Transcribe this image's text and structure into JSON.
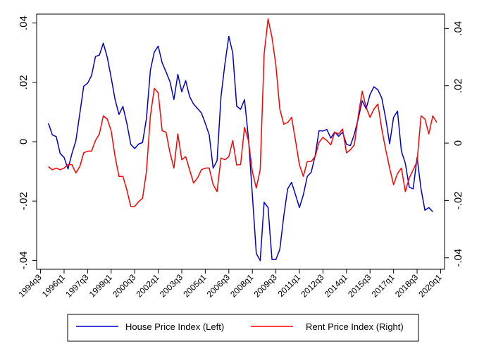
{
  "chart_data": {
    "type": "line",
    "title": "",
    "xlabel": "",
    "ylabel_left": "",
    "ylabel_right": "",
    "x_tick_labels": [
      "1994q3",
      "1996q1",
      "1997q3",
      "1999q1",
      "2000q3",
      "2002q1",
      "2003q3",
      "2005q1",
      "2006q3",
      "2008q1",
      "2009q3",
      "2011q1",
      "2012q3",
      "2014q1",
      "2015q3",
      "2017q1",
      "2018q3",
      "2020q1"
    ],
    "x_tick_index": [
      0,
      6,
      12,
      18,
      24,
      30,
      36,
      42,
      48,
      54,
      60,
      66,
      72,
      78,
      84,
      90,
      96,
      102
    ],
    "y_left": {
      "lim": [
        -0.043,
        0.043
      ],
      "ticks": [
        -0.04,
        -0.02,
        0,
        0.02,
        0.04
      ],
      "tick_labels": [
        "-.04",
        "-.02",
        "0",
        ".02",
        ".04"
      ]
    },
    "y_right": {
      "lim": [
        -0.044,
        0.045
      ],
      "ticks": [
        -0.04,
        -0.02,
        0,
        0.02,
        0.04
      ],
      "tick_labels": [
        "-.04",
        "-.02",
        "0",
        ".02",
        ".04"
      ]
    },
    "grid": false,
    "legend_position": "bottom",
    "series": [
      {
        "name": "House Price Index (Left)",
        "axis": "left",
        "color": "#0000cc",
        "start_index": 2,
        "values": [
          0.0062,
          0.0023,
          0.0017,
          -0.004,
          -0.0053,
          -0.0092,
          -0.004,
          0.0003,
          0.0094,
          0.0187,
          0.0197,
          0.0223,
          0.0287,
          0.0292,
          0.0332,
          0.0285,
          0.0216,
          0.0142,
          0.0092,
          0.0119,
          0.0062,
          -0.0009,
          -0.0023,
          -0.0008,
          -0.0003,
          0.0078,
          0.0241,
          0.0302,
          0.0322,
          0.0266,
          0.0235,
          0.0202,
          0.0142,
          0.0227,
          0.0168,
          0.0206,
          0.0152,
          0.0127,
          0.0112,
          0.0097,
          0.0062,
          0.0023,
          -0.0089,
          -0.0064,
          0.0151,
          0.0262,
          0.0355,
          0.0299,
          0.012,
          0.0109,
          0.0142,
          0.0012,
          -0.0179,
          -0.0376,
          -0.0401,
          -0.0204,
          -0.0222,
          -0.0397,
          -0.0397,
          -0.0363,
          -0.0252,
          -0.0159,
          -0.0137,
          -0.0179,
          -0.0222,
          -0.0179,
          -0.0117,
          -0.0103,
          -0.0048,
          0.0037,
          0.0036,
          0.0041,
          0.0012,
          0.0033,
          0.0018,
          0.0032,
          -0.0009,
          -0.0013,
          0.0025,
          0.0078,
          0.0138,
          0.0111,
          0.0159,
          0.0185,
          0.0175,
          0.0147,
          0.0078,
          -0.0007,
          0.0082,
          0.0103,
          -0.0032,
          -0.0073,
          -0.0153,
          -0.0159,
          -0.0053,
          -0.0159,
          -0.0231,
          -0.0222,
          -0.0236
        ]
      },
      {
        "name": "Rent Price Index (Right)",
        "axis": "right",
        "color": "#ff0000",
        "start_index": 2,
        "values": [
          -0.0082,
          -0.0093,
          -0.0087,
          -0.0093,
          -0.0087,
          -0.0075,
          -0.0075,
          -0.0104,
          -0.0082,
          -0.0034,
          -0.0028,
          -0.0028,
          0.0009,
          0.0032,
          0.0095,
          0.0084,
          0.0043,
          -0.0047,
          -0.0116,
          -0.0116,
          -0.0163,
          -0.0221,
          -0.0221,
          -0.0204,
          -0.0192,
          -0.0099,
          0.0095,
          0.0191,
          0.0175,
          0.0043,
          0.0038,
          -0.0034,
          -0.0087,
          0.0032,
          -0.0058,
          -0.0047,
          -0.0093,
          -0.0139,
          -0.0122,
          -0.0093,
          -0.0087,
          -0.0087,
          -0.0145,
          -0.0169,
          -0.0052,
          -0.0058,
          -0.0047,
          0.0009,
          -0.0076,
          -0.0075,
          0.0055,
          0.0009,
          -0.0099,
          -0.0157,
          -0.0093,
          0.031,
          0.0433,
          0.0369,
          0.0271,
          0.0119,
          0.0066,
          0.0072,
          0.009,
          0.0009,
          -0.0076,
          -0.0116,
          -0.0064,
          -0.0064,
          -0.0047,
          0.0003,
          0.002,
          0.0009,
          -0.0006,
          0.0038,
          0.0032,
          0.0049,
          -0.0034,
          -0.0023,
          -0.0006,
          0.0095,
          0.0181,
          0.0125,
          0.009,
          0.0119,
          0.0136,
          0.0049,
          -0.0023,
          -0.0087,
          -0.0145,
          -0.0106,
          -0.0087,
          -0.0169,
          -0.0122,
          -0.0093,
          -0.0064,
          0.0095,
          0.0084,
          0.0032,
          0.0095,
          0.0072
        ]
      }
    ]
  }
}
